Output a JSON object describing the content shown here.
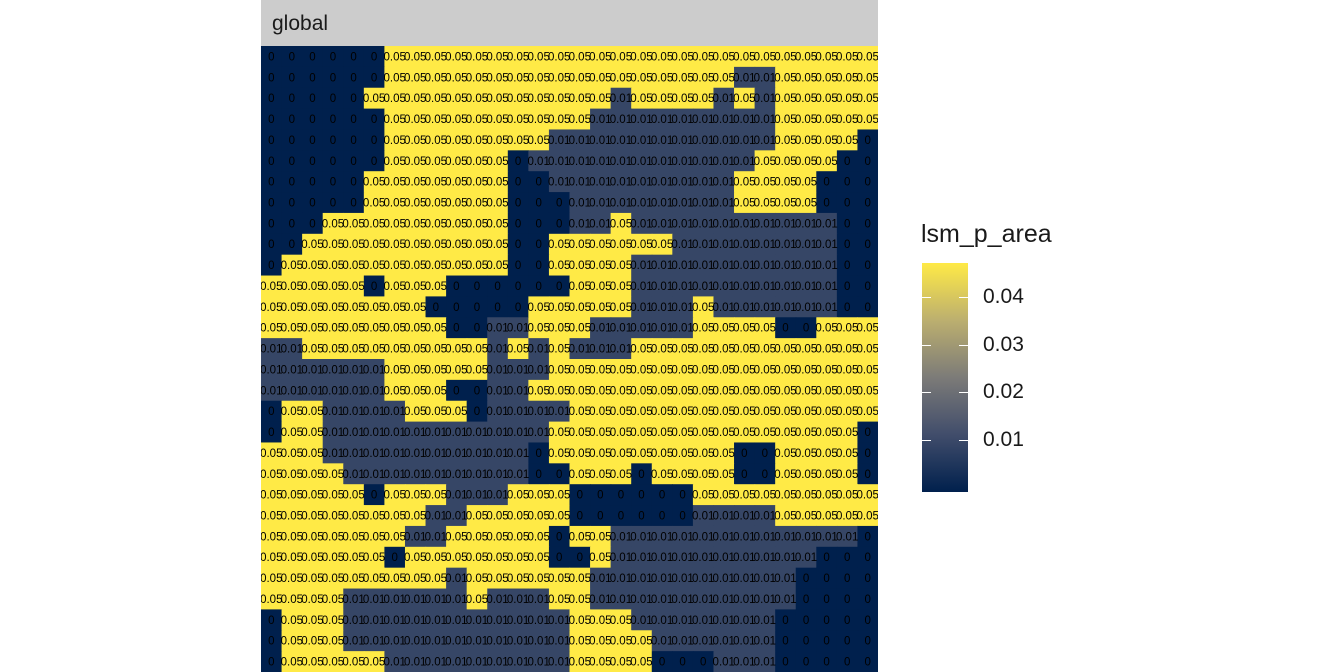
{
  "chart_data": {
    "type": "heatmap",
    "facet_label": "global",
    "legend": {
      "title": "lsm_p_area",
      "ticks": [
        0.04,
        0.03,
        0.02,
        0.01
      ],
      "tick_labels": [
        "0.04",
        "0.03",
        "0.02",
        "0.01"
      ],
      "range": [
        0,
        0.048
      ],
      "colors": [
        "#00204d",
        "#414d6b",
        "#7c7b78",
        "#bcaf6f",
        "#ffea46"
      ]
    },
    "cell_value_by_code": {
      "N": 0,
      "G": 0.01,
      "Y": 0.05
    },
    "cell_label_by_code": {
      "N": "0",
      "G": "0.01",
      "Y": "0.05"
    },
    "n_cols": 30,
    "n_rows": 30,
    "grid": [
      "NNNNNNYYYYYYYYYYYYYYYYYYYYYYYY",
      "NNNNNNYYYYYYYYYYYYYYYYYGGYYYYY",
      "NNNNNYYYYYYYYYYYYGYYYYGYGYYYYY",
      "NNNNNNYYYYYYYYYYGGGGGGGGGYYYYY",
      "NNNNNNYYYYYYYYGGGGGGGGGGGYYYYN",
      "NNNNNNYYYYYYNGGGGGGGGGGGYYYYNN",
      "NNNNNYYYYYYYNNGGGGGGGGGYYYYNNN",
      "NNNNNYYYYYYYNNNGGGGGGGGYYYYNNN",
      "NNNYYYYYYYYYNNNGGYGGGGGGGGGGNN",
      "NNYYYYYYYYYYNNYYYYYYGGGGGGGGNN",
      "NYYYYYYYYYYYNNYYYYGGGGGGGGGGNN",
      "YYYYYNYYYNNNNNNYYYGGGGGGGGGGNN",
      "YYYYYYYYNNNNNYYYYYGGGYGGGGGGNN",
      "YYYYYYYYYNNGGYYYGGGGGYYYYNNYYY",
      "GGYYYYYYYYYGYGYGGGYYYYYYYYYYYY",
      "GGGGGGYYYYYGGGYYYYYYYYYYYYYYYY",
      "GGGGGGYYYNNGGYYYYYYYYYYYYYYYYY",
      "NYYGGGGYYYNGGGGYYYYYYYYYYYYYYY",
      "NYYGGGGGGGGGGGYYYYYYYYYYYYYYYN",
      "YYYGGGGGGGGGGNYYYYYYYYYNNYYYYN",
      "YYYYGGGGGGGGGNNYYYNYYYYNNYYYYN",
      "YYYYYNYYYGGGYYYNNNNNNYYYYYYYYY",
      "YYYYYYYYGGYYYYYNNNNNNGGGGYYYYY",
      "YYYYYYYGGYYYYYNYYGGGGGGGGGGGGN",
      "YYYYYYNYYYYYYYNNYGGGGGGGGGGNNN",
      "YYYYYYYYYGYYYYYYGGGGGGGGGGNNNN",
      "YYYYGGGGGGYGGGYYGGGGGGGGGGNNNN",
      "NYYYGGGGGGGGGGGYYYGGGGGGGNNNNN",
      "NYYYGGGGGGGGGGGYYYYGGGGGGNNNNN",
      "NYYYYYGGGGGGGGGYYYYNNNGGGNNNNN"
    ]
  }
}
